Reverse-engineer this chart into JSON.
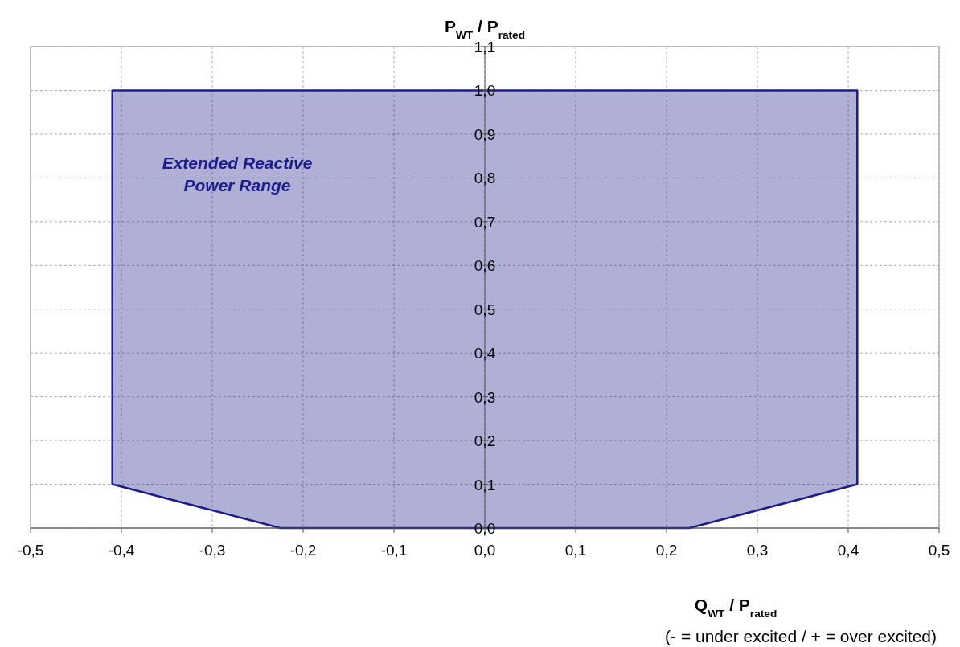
{
  "chart_data": {
    "type": "area",
    "xlabel": "Q$_{WT}$ / P$_{rated}$",
    "ylabel": "P$_{WT}$ / P$_{rated}$",
    "series": [
      {
        "color": "#1c1c8c",
        "x": [
          -0.41,
          -0.41,
          0.41,
          0.41,
          0.225,
          -0.225,
          -0.41
        ],
        "values": [
          0.1,
          1.0,
          1.0,
          0.1,
          0.0,
          0.0,
          0.1
        ]
      }
    ],
    "xlim": [
      -0.5,
      0.5
    ],
    "ylim": [
      0,
      1.1
    ],
    "xticks": [
      {
        "value": -0.5,
        "label": "-0,5"
      },
      {
        "value": -0.4,
        "label": "-0,4"
      },
      {
        "value": -0.3,
        "label": "-0,3"
      },
      {
        "value": -0.2,
        "label": "-0,2"
      },
      {
        "value": -0.1,
        "label": "-0,1"
      },
      {
        "value": 0,
        "label": "0,0"
      },
      {
        "value": 0.1,
        "label": "0,1"
      },
      {
        "value": 0.2,
        "label": "0,2"
      },
      {
        "value": 0.3,
        "label": "0,3"
      },
      {
        "value": 0.4,
        "label": "0,4"
      },
      {
        "value": 0.5,
        "label": "0,5"
      }
    ],
    "yticks": [
      {
        "value": 0,
        "label": "0,0"
      },
      {
        "value": 0.1,
        "label": "0,1"
      },
      {
        "value": 0.2,
        "label": "0,2"
      },
      {
        "value": 0.3,
        "label": "0,3"
      },
      {
        "value": 0.4,
        "label": "0,4"
      },
      {
        "value": 0.5,
        "label": "0,5"
      },
      {
        "value": 0.6,
        "label": "0,6"
      },
      {
        "value": 0.7,
        "label": "0,7"
      },
      {
        "value": 0.8,
        "label": "0,8"
      },
      {
        "value": 0.9,
        "label": "0,9"
      },
      {
        "value": 1.0,
        "label": "1,0"
      },
      {
        "value": 1.1,
        "label": "1,1"
      }
    ],
    "grid": true,
    "annotations": [
      "Extended Reactive Power Range",
      "(- = under excited / + = over excited)"
    ]
  }
}
